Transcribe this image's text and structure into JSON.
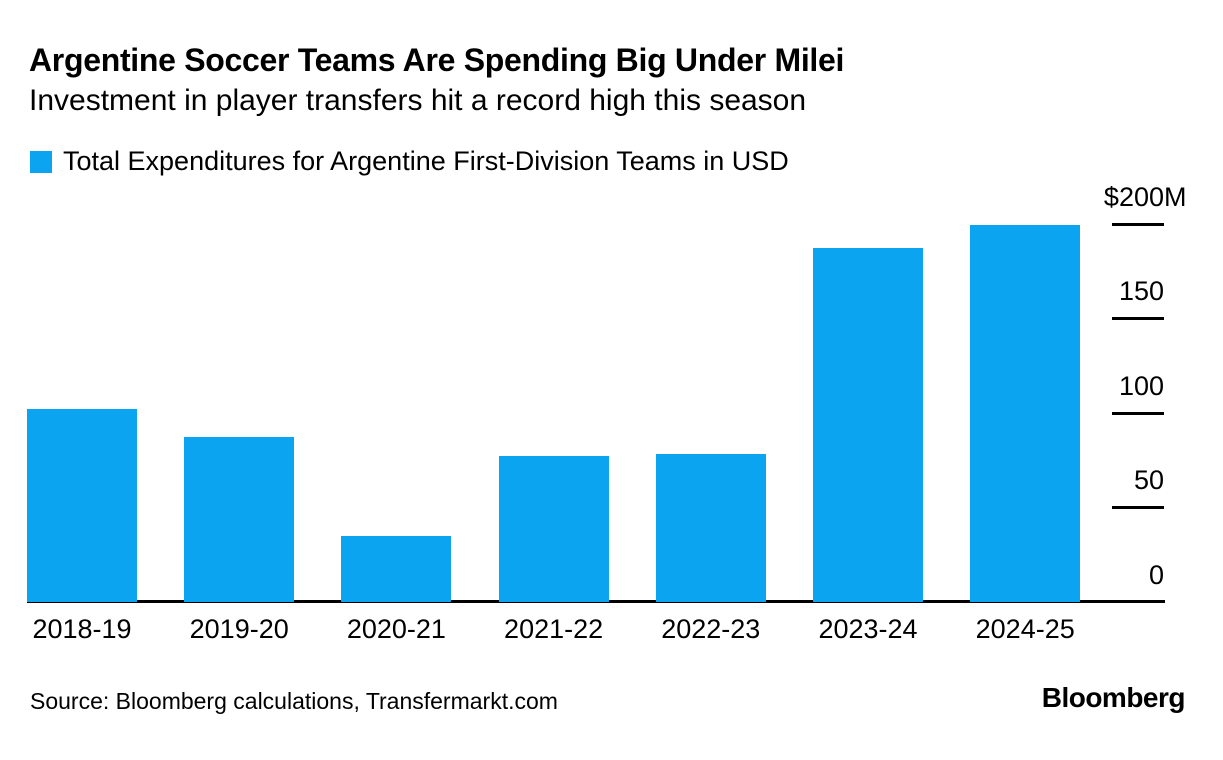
{
  "header": {
    "title": "Argentine Soccer Teams Are Spending Big Under Milei",
    "subtitle": "Investment in player transfers hit a record high this season"
  },
  "legend": {
    "label": "Total Expenditures for Argentine First-Division Teams in USD",
    "swatch_color": "#0AA4F0"
  },
  "chart_data": {
    "type": "bar",
    "title": "Argentine Soccer Teams Are Spending Big Under Milei",
    "subtitle": "Investment in player transfers hit a record high this season",
    "categories": [
      "2018-19",
      "2019-20",
      "2020-21",
      "2021-22",
      "2022-23",
      "2023-24",
      "2024-25"
    ],
    "series": [
      {
        "name": "Total Expenditures for Argentine First-Division Teams in USD",
        "values": [
          102,
          87,
          35,
          77,
          78,
          187,
          199
        ]
      }
    ],
    "unit": "USD millions",
    "xlabel": "",
    "ylabel": "",
    "ylim": [
      0,
      200
    ],
    "yticks": [
      {
        "value": 200,
        "label": "$200",
        "suffix": "M"
      },
      {
        "value": 150,
        "label": "150"
      },
      {
        "value": 100,
        "label": "100"
      },
      {
        "value": 50,
        "label": "50"
      },
      {
        "value": 0,
        "label": "0"
      }
    ],
    "bar_color": "#0AA4F0",
    "axis_color": "#000000",
    "axis_side": "right",
    "grid": false,
    "legend_position": "top-left"
  },
  "footer": {
    "source": "Source: Bloomberg calculations, Transfermarkt.com",
    "brand": "Bloomberg"
  }
}
